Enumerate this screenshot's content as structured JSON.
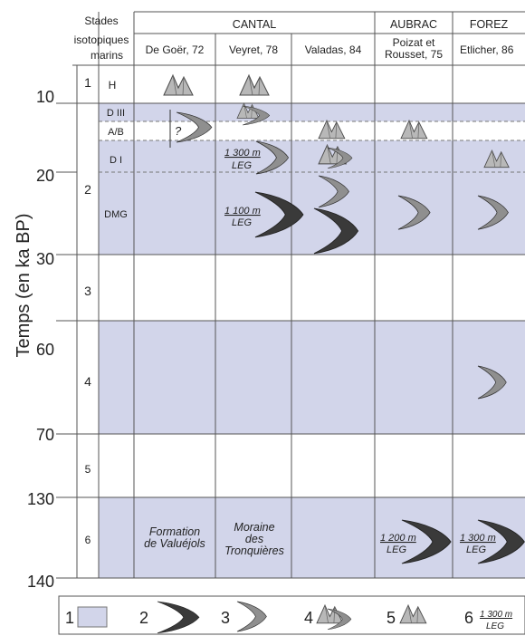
{
  "header": {
    "stades_line1": "Stades",
    "stades_line2": "isotopiques",
    "stades_line3": "marins",
    "regions": [
      "CANTAL",
      "AUBRAC",
      "FOREZ"
    ],
    "authors": [
      "De Goër, 72",
      "Veyret, 78",
      "Valadas, 84",
      "Poizat et",
      "Rousset, 75",
      "Etlicher, 86"
    ]
  },
  "y_axis": {
    "label": "Temps (en ka BP)",
    "ticks": [
      "10",
      "20",
      "30",
      "60",
      "70",
      "130",
      "140"
    ]
  },
  "stages": [
    "1",
    "2",
    "3",
    "4",
    "5",
    "6"
  ],
  "substages": [
    "H",
    "D III",
    "A/B",
    "D I",
    "DMG"
  ],
  "annotations": {
    "question_mark": "?",
    "veyret_1300_alt": "1 300 m",
    "veyret_1300_leg": "LEG",
    "veyret_1100_alt": "1 100 m",
    "veyret_1100_leg": "LEG",
    "poizat_1200_alt": "1 200 m",
    "poizat_1200_leg": "LEG",
    "etlicher_1300_alt": "1 300 m",
    "etlicher_1300_leg": "LEG",
    "formation_l1": "Formation",
    "formation_l2": "de Valuéjols",
    "moraine_l1": "Moraine",
    "moraine_l2": "des",
    "moraine_l3": "Tronquières"
  },
  "legend": {
    "numbers": [
      "1",
      "2",
      "3",
      "4",
      "5",
      "6"
    ],
    "item6_alt": "1 300 m",
    "item6_leg": "LEG"
  },
  "colors": {
    "glacial_fill": "#d2d5ea",
    "dark_moraine": "#3a3a3a",
    "light_moraine": "#8f8f8f",
    "peak": "#b8b8b8",
    "line": "#555555"
  },
  "icons": {
    "dark_moraine": "dark-crescent-icon",
    "light_moraine": "grey-crescent-icon",
    "peaks": "mountain-peaks-icon",
    "peaks_moraine": "peaks-with-moraine-icon"
  }
}
